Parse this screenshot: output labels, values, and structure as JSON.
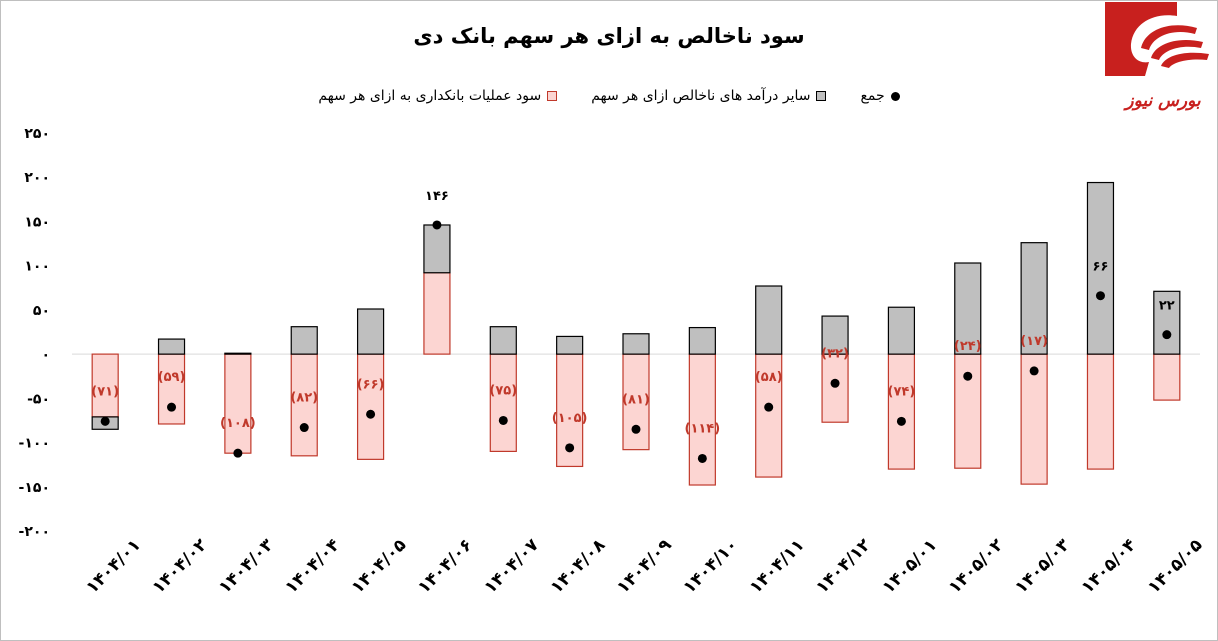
{
  "logo": {
    "text": "بورس نیوز",
    "icon": "bourse-news-logo",
    "color": "#c8201e"
  },
  "colors": {
    "other": "#bfbfbf",
    "other_stroke": "#000000",
    "ops": "#fcd5d2",
    "ops_stroke": "#c0392b",
    "total": "#000000",
    "ops_label": "#c0392b"
  },
  "chart_data": {
    "type": "bar",
    "title": "سود ناخالص به ازای هر سهم بانک دی",
    "legend_position": "top",
    "ylim": [
      -200,
      250
    ],
    "yticks": [
      "۲۵۰",
      "۲۰۰",
      "۱۵۰",
      "۱۰۰",
      "۵۰",
      "۰",
      "-۵۰",
      "-۱۰۰",
      "-۱۵۰",
      "-۲۰۰"
    ],
    "categories": [
      "۱۴۰۴/۰۱",
      "۱۴۰۴/۰۲",
      "۱۴۰۴/۰۳",
      "۱۴۰۴/۰۴",
      "۱۴۰۴/۰۵",
      "۱۴۰۴/۰۶",
      "۱۴۰۴/۰۷",
      "۱۴۰۴/۰۸",
      "۱۴۰۴/۰۹",
      "۱۴۰۴/۱۰",
      "۱۴۰۴/۱۱",
      "۱۴۰۴/۱۲",
      "۱۴۰۵/۰۱",
      "۱۴۰۵/۰۲",
      "۱۴۰۵/۰۳",
      "۱۴۰۵/۰۴",
      "۱۴۰۵/۰۵"
    ],
    "series": [
      {
        "name": "سود عملیات بانکداری به ازای هر سهم",
        "values": [
          -71,
          -79,
          -112,
          -115,
          -119,
          92,
          -110,
          -127,
          -108,
          -148,
          -139,
          -77,
          -130,
          -129,
          -147,
          -130,
          -52
        ]
      },
      {
        "name": "سایر درآمد های ناخالص ازای هر سهم",
        "values": [
          -14,
          17,
          1,
          31,
          51,
          54,
          31,
          20,
          23,
          30,
          77,
          43,
          53,
          103,
          126,
          194,
          71
        ]
      },
      {
        "name": "جمع",
        "values": [
          -76,
          -60,
          -112,
          -83,
          -68,
          146,
          -75,
          -106,
          -85,
          -118,
          -60,
          -33,
          -76,
          -25,
          -19,
          66,
          22
        ]
      }
    ],
    "ops_labels": [
      "(۷۱)",
      "(۵۹)",
      "(۱۰۸)",
      "(۸۲)",
      "(۶۶)",
      "",
      "(۷۵)",
      "(۱۰۵)",
      "(۸۱)",
      "(۱۱۴)",
      "(۵۸)",
      "(۳۲)",
      "(۷۴)",
      "(۲۴)",
      "(۱۷)",
      "",
      ""
    ],
    "total_labels": [
      "",
      "",
      "",
      "",
      "",
      "۱۴۶",
      "",
      "",
      "",
      "",
      "",
      "",
      "",
      "",
      "",
      "۶۶",
      "۲۲"
    ]
  }
}
